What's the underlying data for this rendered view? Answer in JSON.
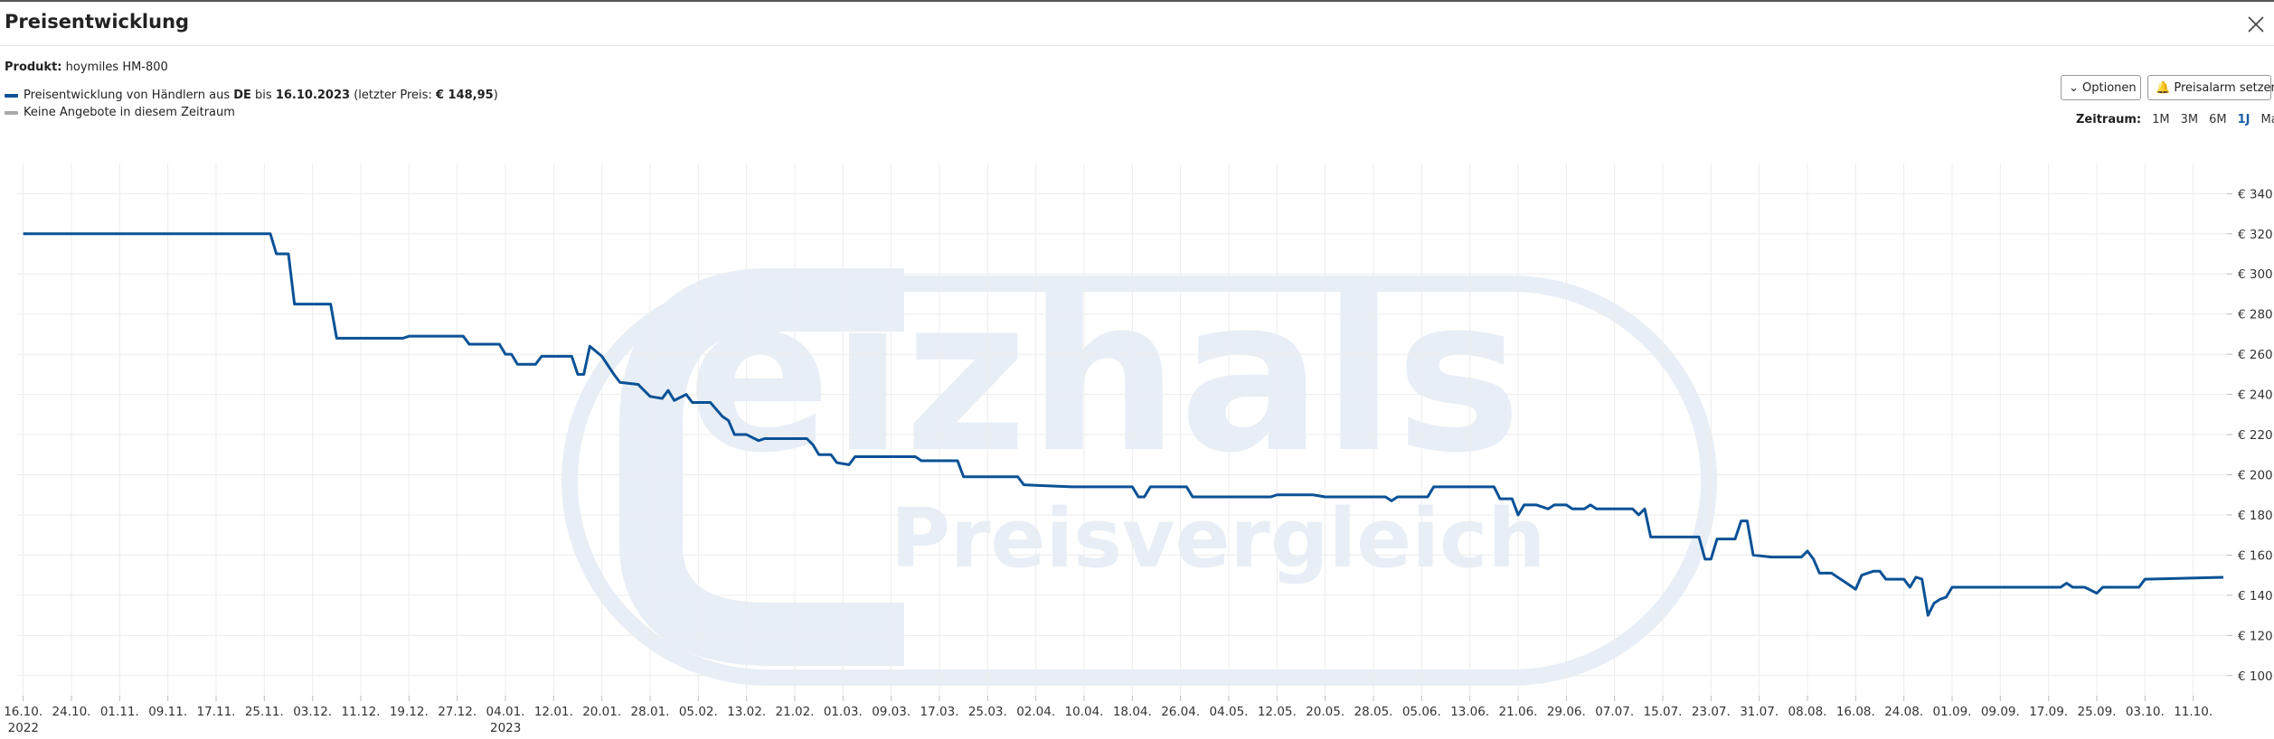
{
  "header": {
    "title": "Preisentwicklung"
  },
  "product": {
    "label": "Produkt:",
    "name": "hoymiles HM-800"
  },
  "legend": {
    "parts": [
      "Preisentwicklung von Händlern aus ",
      "DE",
      " bis ",
      "16.10.2023",
      " (letzter Preis: ",
      "€ 148,95",
      ")"
    ],
    "no_offers": "Keine Angebote in diesem Zeitraum"
  },
  "buttons": {
    "options": "Optionen",
    "alarm": "Preisalarm setzen"
  },
  "range": {
    "label": "Zeitraum:",
    "options": [
      "1M",
      "3M",
      "6M",
      "1J",
      "Max"
    ],
    "active": "1J"
  },
  "watermark": {
    "brand": "eizhals",
    "tagline": "Preisvergleich"
  },
  "chart_data": {
    "type": "line",
    "grid": true,
    "xlim": [
      "2022-10-15",
      "2023-10-16"
    ],
    "ylim": [
      90,
      355
    ],
    "yticks": [
      {
        "value": 100,
        "label": "€ 100"
      },
      {
        "value": 120,
        "label": "€ 120"
      },
      {
        "value": 140,
        "label": "€ 140"
      },
      {
        "value": 160,
        "label": "€ 160"
      },
      {
        "value": 180,
        "label": "€ 180"
      },
      {
        "value": 200,
        "label": "€ 200"
      },
      {
        "value": 220,
        "label": "€ 220"
      },
      {
        "value": 240,
        "label": "€ 240"
      },
      {
        "value": 260,
        "label": "€ 260"
      },
      {
        "value": 280,
        "label": "€ 280"
      },
      {
        "value": 300,
        "label": "€ 300"
      },
      {
        "value": 320,
        "label": "€ 320"
      },
      {
        "value": 340,
        "label": "€ 340"
      }
    ],
    "xticks": [
      {
        "value": "2022-10-16",
        "label": "16.10."
      },
      {
        "value": "2022-10-24",
        "label": "24.10."
      },
      {
        "value": "2022-11-01",
        "label": "01.11."
      },
      {
        "value": "2022-11-09",
        "label": "09.11."
      },
      {
        "value": "2022-11-17",
        "label": "17.11."
      },
      {
        "value": "2022-11-25",
        "label": "25.11."
      },
      {
        "value": "2022-12-03",
        "label": "03.12."
      },
      {
        "value": "2022-12-11",
        "label": "11.12."
      },
      {
        "value": "2022-12-19",
        "label": "19.12."
      },
      {
        "value": "2022-12-27",
        "label": "27.12."
      },
      {
        "value": "2023-01-04",
        "label": "04.01."
      },
      {
        "value": "2023-01-12",
        "label": "12.01."
      },
      {
        "value": "2023-01-20",
        "label": "20.01."
      },
      {
        "value": "2023-01-28",
        "label": "28.01."
      },
      {
        "value": "2023-02-05",
        "label": "05.02."
      },
      {
        "value": "2023-02-13",
        "label": "13.02."
      },
      {
        "value": "2023-02-21",
        "label": "21.02."
      },
      {
        "value": "2023-03-01",
        "label": "01.03."
      },
      {
        "value": "2023-03-09",
        "label": "09.03."
      },
      {
        "value": "2023-03-17",
        "label": "17.03."
      },
      {
        "value": "2023-03-25",
        "label": "25.03."
      },
      {
        "value": "2023-04-02",
        "label": "02.04."
      },
      {
        "value": "2023-04-10",
        "label": "10.04."
      },
      {
        "value": "2023-04-18",
        "label": "18.04."
      },
      {
        "value": "2023-04-26",
        "label": "26.04."
      },
      {
        "value": "2023-05-04",
        "label": "04.05."
      },
      {
        "value": "2023-05-12",
        "label": "12.05."
      },
      {
        "value": "2023-05-20",
        "label": "20.05."
      },
      {
        "value": "2023-05-28",
        "label": "28.05."
      },
      {
        "value": "2023-06-05",
        "label": "05.06."
      },
      {
        "value": "2023-06-13",
        "label": "13.06."
      },
      {
        "value": "2023-06-21",
        "label": "21.06."
      },
      {
        "value": "2023-06-29",
        "label": "29.06."
      },
      {
        "value": "2023-07-07",
        "label": "07.07."
      },
      {
        "value": "2023-07-15",
        "label": "15.07."
      },
      {
        "value": "2023-07-23",
        "label": "23.07."
      },
      {
        "value": "2023-07-31",
        "label": "31.07."
      },
      {
        "value": "2023-08-08",
        "label": "08.08."
      },
      {
        "value": "2023-08-16",
        "label": "16.08."
      },
      {
        "value": "2023-08-24",
        "label": "24.08."
      },
      {
        "value": "2023-09-01",
        "label": "01.09."
      },
      {
        "value": "2023-09-09",
        "label": "09.09."
      },
      {
        "value": "2023-09-17",
        "label": "17.09."
      },
      {
        "value": "2023-09-25",
        "label": "25.09."
      },
      {
        "value": "2023-10-03",
        "label": "03.10."
      },
      {
        "value": "2023-10-11",
        "label": "11.10."
      }
    ],
    "year_labels": [
      {
        "value": "2022-10-16",
        "label": "2022"
      },
      {
        "value": "2023-01-04",
        "label": "2023"
      }
    ],
    "series": [
      {
        "color": "#0a5196",
        "x": [
          "2022-10-16",
          "2022-11-26",
          "2022-11-27",
          "2022-11-29",
          "2022-11-30",
          "2022-12-06",
          "2022-12-07",
          "2022-12-18",
          "2022-12-19",
          "2022-12-28",
          "2022-12-29",
          "2023-01-03",
          "2023-01-04",
          "2023-01-05",
          "2023-01-06",
          "2023-01-09",
          "2023-01-10",
          "2023-01-15",
          "2023-01-16",
          "2023-01-17",
          "2023-01-18",
          "2023-01-20",
          "2023-01-22",
          "2023-01-23",
          "2023-01-26",
          "2023-01-28",
          "2023-01-30",
          "2023-01-31",
          "2023-02-01",
          "2023-02-03",
          "2023-02-04",
          "2023-02-07",
          "2023-02-09",
          "2023-02-10",
          "2023-02-11",
          "2023-02-13",
          "2023-02-15",
          "2023-02-16",
          "2023-02-23",
          "2023-02-24",
          "2023-02-25",
          "2023-02-27",
          "2023-02-28",
          "2023-03-02",
          "2023-03-03",
          "2023-03-13",
          "2023-03-14",
          "2023-03-20",
          "2023-03-21",
          "2023-03-30",
          "2023-03-31",
          "2023-04-08",
          "2023-04-18",
          "2023-04-19",
          "2023-04-20",
          "2023-04-21",
          "2023-04-27",
          "2023-04-28",
          "2023-05-11",
          "2023-05-12",
          "2023-05-18",
          "2023-05-20",
          "2023-05-30",
          "2023-05-31",
          "2023-06-01",
          "2023-06-06",
          "2023-06-07",
          "2023-06-17",
          "2023-06-18",
          "2023-06-20",
          "2023-06-21",
          "2023-06-22",
          "2023-06-24",
          "2023-06-26",
          "2023-06-27",
          "2023-06-29",
          "2023-06-30",
          "2023-07-02",
          "2023-07-03",
          "2023-07-04",
          "2023-07-10",
          "2023-07-11",
          "2023-07-12",
          "2023-07-13",
          "2023-07-21",
          "2023-07-22",
          "2023-07-23",
          "2023-07-24",
          "2023-07-27",
          "2023-07-28",
          "2023-07-29",
          "2023-07-30",
          "2023-08-02",
          "2023-08-07",
          "2023-08-08",
          "2023-08-09",
          "2023-08-10",
          "2023-08-12",
          "2023-08-14",
          "2023-08-16",
          "2023-08-17",
          "2023-08-19",
          "2023-08-20",
          "2023-08-21",
          "2023-08-24",
          "2023-08-25",
          "2023-08-26",
          "2023-08-27",
          "2023-08-28",
          "2023-08-29",
          "2023-08-30",
          "2023-08-31",
          "2023-09-01",
          "2023-09-19",
          "2023-09-20",
          "2023-09-21",
          "2023-09-23",
          "2023-09-25",
          "2023-09-26",
          "2023-10-02",
          "2023-10-03",
          "2023-10-16"
        ],
        "values": [
          320,
          320,
          310,
          310,
          285,
          285,
          268,
          268,
          269,
          269,
          265,
          265,
          260,
          260,
          255,
          255,
          259,
          259,
          250,
          250,
          264,
          259,
          250,
          246,
          245,
          239,
          238,
          242,
          237,
          240,
          236,
          236,
          229,
          227,
          220,
          220,
          217,
          218,
          218,
          215,
          210,
          210,
          206,
          205,
          209,
          209,
          207,
          207,
          199,
          199,
          195,
          194,
          194,
          189,
          189,
          194,
          194,
          189,
          189,
          190,
          190,
          189,
          189,
          187,
          189,
          189,
          194,
          194,
          188,
          188,
          180,
          185,
          185,
          183,
          185,
          185,
          183,
          183,
          185,
          183,
          183,
          180,
          183,
          169,
          169,
          158,
          158,
          168,
          168,
          177,
          177,
          160,
          159,
          159,
          162,
          158,
          151,
          151,
          147,
          143,
          150,
          152,
          152,
          148,
          148,
          144,
          149,
          148,
          130,
          136,
          138,
          139,
          144,
          144,
          146,
          144,
          144,
          141,
          144,
          144,
          148,
          148.95
        ]
      }
    ]
  }
}
